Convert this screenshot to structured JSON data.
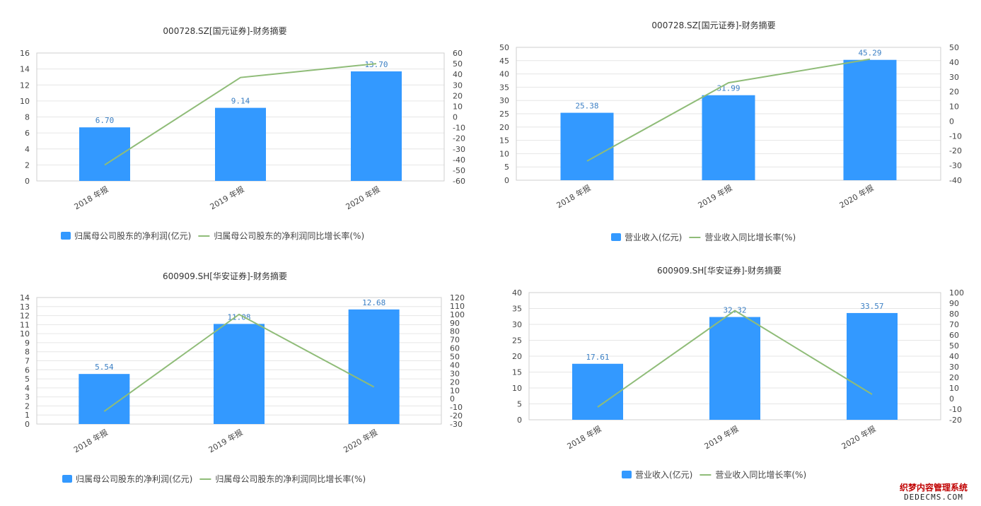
{
  "chart_data": [
    {
      "type": "bar",
      "title": "000728.SZ[国元证券]-财务摘要",
      "categories": [
        "2018 年报",
        "2019 年报",
        "2020 年报"
      ],
      "series": [
        {
          "name": "归属母公司股东的净利润(亿元)",
          "type": "bar",
          "axis": "left",
          "values": [
            6.7,
            9.14,
            13.7
          ],
          "labels": [
            "6.70",
            "9.14",
            "13.70"
          ],
          "color": "#3399ff"
        },
        {
          "name": "归属母公司股东的净利润同比增长率(%)",
          "type": "line",
          "axis": "right",
          "values": [
            -45,
            37,
            50
          ],
          "color": "#8fbc78"
        }
      ],
      "y_left": {
        "min": 0,
        "max": 16,
        "step": 2
      },
      "y_right": {
        "min": -60,
        "max": 60,
        "step": 10
      },
      "grid": true,
      "legend_position": "bottom"
    },
    {
      "type": "bar",
      "title": "000728.SZ[国元证券]-财务摘要",
      "categories": [
        "2018 年报",
        "2019 年报",
        "2020 年报"
      ],
      "series": [
        {
          "name": "营业收入(亿元)",
          "type": "bar",
          "axis": "left",
          "values": [
            25.38,
            31.99,
            45.29
          ],
          "labels": [
            "25.38",
            "31.99",
            "45.29"
          ],
          "color": "#3399ff"
        },
        {
          "name": "营业收入同比增长率(%)",
          "type": "line",
          "axis": "right",
          "values": [
            -27,
            26,
            42
          ],
          "color": "#8fbc78"
        }
      ],
      "y_left": {
        "min": 0,
        "max": 50,
        "step": 5
      },
      "y_right": {
        "min": -40,
        "max": 50,
        "step": 10
      },
      "grid": true,
      "legend_position": "bottom"
    },
    {
      "type": "bar",
      "title": "600909.SH[华安证券]-财务摘要",
      "categories": [
        "2018 年报",
        "2019 年报",
        "2020 年报"
      ],
      "series": [
        {
          "name": "归属母公司股东的净利润(亿元)",
          "type": "bar",
          "axis": "left",
          "values": [
            5.54,
            11.08,
            12.68
          ],
          "labels": [
            "5.54",
            "11.08",
            "12.68"
          ],
          "color": "#3399ff"
        },
        {
          "name": "归属母公司股东的净利润同比增长率(%)",
          "type": "line",
          "axis": "right",
          "values": [
            -15,
            100,
            14
          ],
          "color": "#8fbc78"
        }
      ],
      "y_left": {
        "min": 0,
        "max": 14,
        "step": 1
      },
      "y_right": {
        "min": -30,
        "max": 120,
        "step": 10
      },
      "grid": true,
      "legend_position": "bottom"
    },
    {
      "type": "bar",
      "title": "600909.SH[华安证券]-财务摘要",
      "categories": [
        "2018 年报",
        "2019 年报",
        "2020 年报"
      ],
      "series": [
        {
          "name": "营业收入(亿元)",
          "type": "bar",
          "axis": "left",
          "values": [
            17.61,
            32.32,
            33.57
          ],
          "labels": [
            "17.61",
            "32.32",
            "33.57"
          ],
          "color": "#3399ff"
        },
        {
          "name": "营业收入同比增长率(%)",
          "type": "line",
          "axis": "right",
          "values": [
            -8,
            83,
            4
          ],
          "color": "#8fbc78"
        }
      ],
      "y_left": {
        "min": 0,
        "max": 40,
        "step": 5
      },
      "y_right": {
        "min": -20,
        "max": 100,
        "step": 10
      },
      "grid": true,
      "legend_position": "bottom"
    }
  ],
  "watermark": {
    "line1": "织梦内容管理系统",
    "line2": "DEDECMS.COM"
  }
}
